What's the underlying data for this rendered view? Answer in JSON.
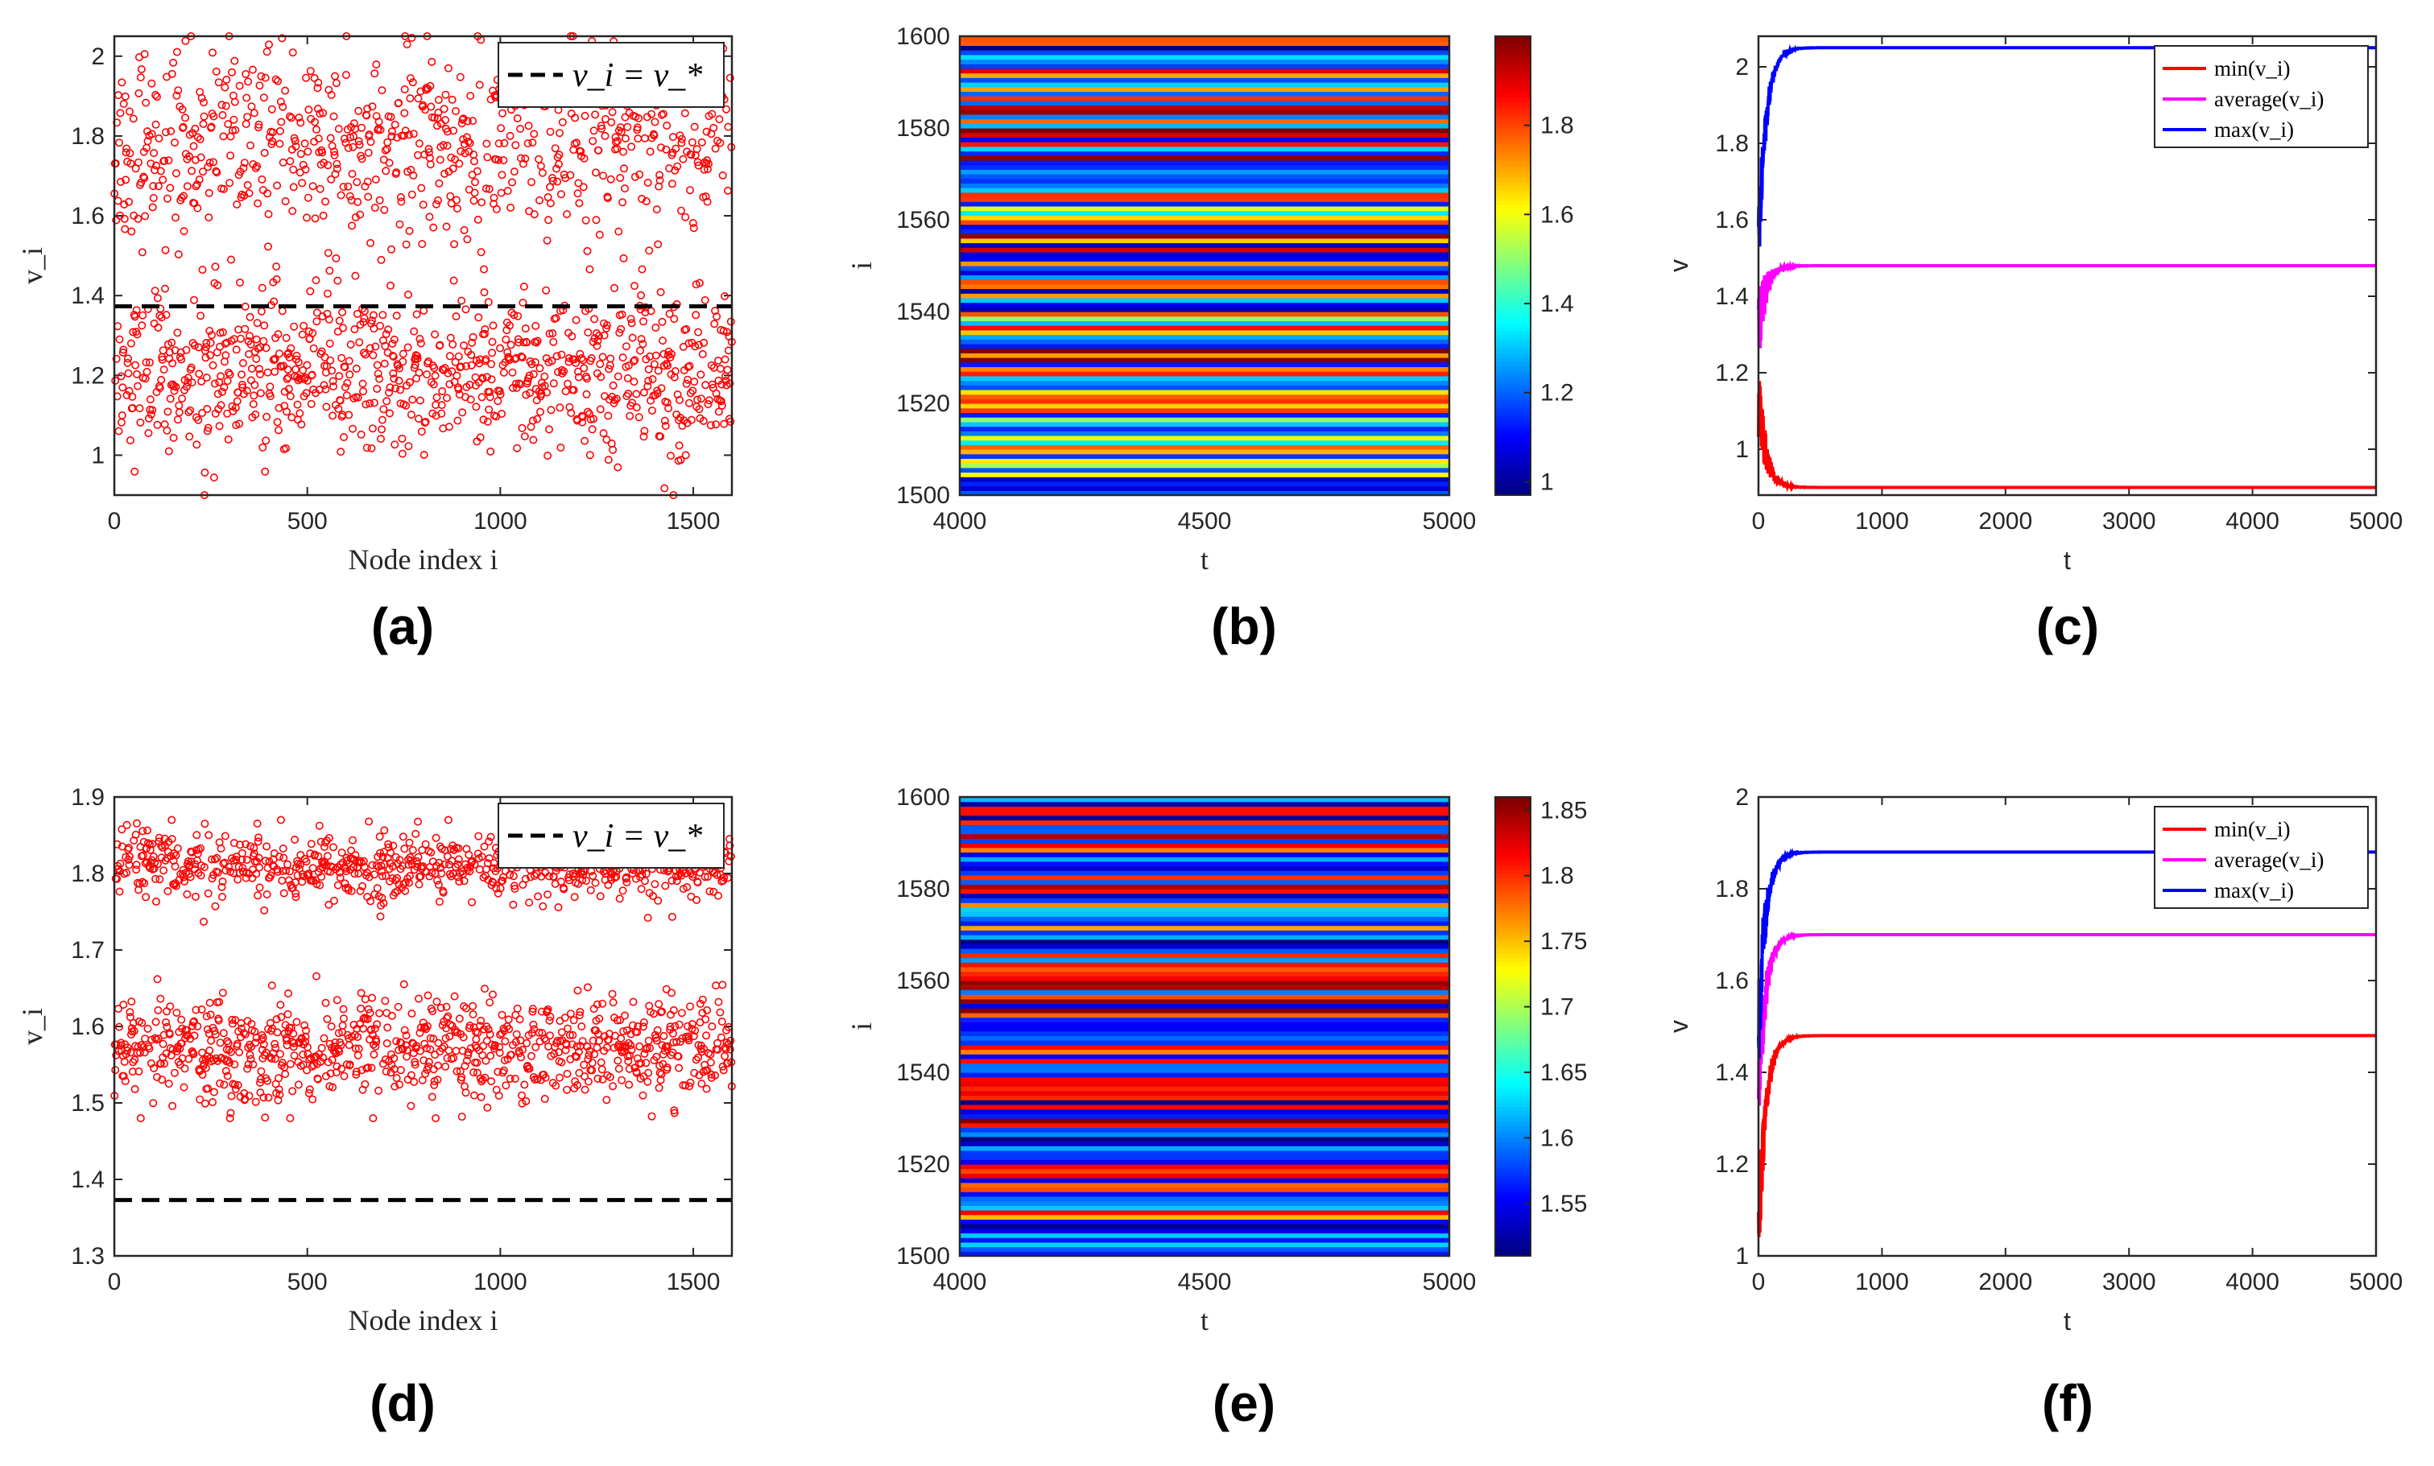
{
  "colors": {
    "scatter": "#ff0000",
    "threshold": "#000000",
    "min": "#ff0000",
    "average": "#ff00ff",
    "max": "#0000ff",
    "axis": "#262626"
  },
  "chart_data": [
    {
      "id": "a",
      "panel_label": "(a)",
      "type": "scatter",
      "xlabel": "Node index i",
      "ylabel": "v_i",
      "xlim": [
        0,
        1600
      ],
      "ylim": [
        0.9,
        2.05
      ],
      "xticks": [
        "0",
        "500",
        "1000",
        "1500"
      ],
      "yticks": [
        "1",
        "1.2",
        "1.4",
        "1.6",
        "1.8",
        "2"
      ],
      "threshold": 1.373,
      "legend": "v_i = v_*",
      "n_points": 1600,
      "clusters": [
        {
          "center": 1.2,
          "spread": 0.1,
          "fraction": 0.55
        },
        {
          "center": 1.78,
          "spread": 0.12,
          "fraction": 0.45
        }
      ],
      "ymin_data": 0.9,
      "ymax_data": 2.05
    },
    {
      "id": "b",
      "panel_label": "(b)",
      "type": "heatmap",
      "xlabel": "t",
      "ylabel": "i",
      "xlim": [
        4000,
        5000
      ],
      "ylim": [
        1500,
        1600
      ],
      "xticks": [
        "4000",
        "4500",
        "5000"
      ],
      "yticks": [
        "1500",
        "1520",
        "1540",
        "1560",
        "1580",
        "1600"
      ],
      "colorbar_range": [
        0.97,
        2.0
      ],
      "colorbar_ticks": [
        "1",
        "1.2",
        "1.4",
        "1.6",
        "1.8"
      ],
      "colormap": "jet"
    },
    {
      "id": "c",
      "panel_label": "(c)",
      "type": "line",
      "xlabel": "t",
      "ylabel": "v",
      "xlim": [
        0,
        5000
      ],
      "ylim": [
        0.88,
        2.08
      ],
      "xticks": [
        "0",
        "1000",
        "2000",
        "3000",
        "4000",
        "5000"
      ],
      "yticks": [
        "1",
        "1.2",
        "1.4",
        "1.6",
        "1.8",
        "2"
      ],
      "series": [
        {
          "name": "min(v_i)",
          "steady": 0.9,
          "start": 1.15
        },
        {
          "name": "average(v_i)",
          "steady": 1.48,
          "start": 1.3
        },
        {
          "name": "max(v_i)",
          "steady": 2.05,
          "start": 1.5
        }
      ]
    },
    {
      "id": "d",
      "panel_label": "(d)",
      "type": "scatter",
      "xlabel": "Node index i",
      "ylabel": "v_i",
      "xlim": [
        0,
        1600
      ],
      "ylim": [
        1.3,
        1.9
      ],
      "xticks": [
        "0",
        "500",
        "1000",
        "1500"
      ],
      "yticks": [
        "1.3",
        "1.4",
        "1.5",
        "1.6",
        "1.7",
        "1.8",
        "1.9"
      ],
      "threshold": 1.373,
      "legend": "v_i = v_*",
      "n_points": 1600,
      "clusters": [
        {
          "center": 1.57,
          "spread": 0.035,
          "fraction": 0.5
        },
        {
          "center": 1.81,
          "spread": 0.022,
          "fraction": 0.5
        }
      ],
      "ymin_data": 1.48,
      "ymax_data": 1.87
    },
    {
      "id": "e",
      "panel_label": "(e)",
      "type": "heatmap",
      "xlabel": "t",
      "ylabel": "i",
      "xlim": [
        4000,
        5000
      ],
      "ylim": [
        1500,
        1600
      ],
      "xticks": [
        "4000",
        "4500",
        "5000"
      ],
      "yticks": [
        "1500",
        "1520",
        "1540",
        "1560",
        "1580",
        "1600"
      ],
      "colorbar_range": [
        1.51,
        1.86
      ],
      "colorbar_ticks": [
        "1.55",
        "1.6",
        "1.65",
        "1.7",
        "1.75",
        "1.8",
        "1.85"
      ],
      "colormap": "jet"
    },
    {
      "id": "f",
      "panel_label": "(f)",
      "type": "line",
      "xlabel": "t",
      "ylabel": "v",
      "xlim": [
        0,
        5000
      ],
      "ylim": [
        1.0,
        2.0
      ],
      "xticks": [
        "0",
        "1000",
        "2000",
        "3000",
        "4000",
        "5000"
      ],
      "yticks": [
        "1",
        "1.2",
        "1.4",
        "1.6",
        "1.8",
        "2"
      ],
      "series": [
        {
          "name": "min(v_i)",
          "steady": 1.48,
          "start": 1.05
        },
        {
          "name": "average(v_i)",
          "steady": 1.7,
          "start": 1.35
        },
        {
          "name": "max(v_i)",
          "steady": 1.88,
          "start": 1.5
        }
      ]
    }
  ]
}
